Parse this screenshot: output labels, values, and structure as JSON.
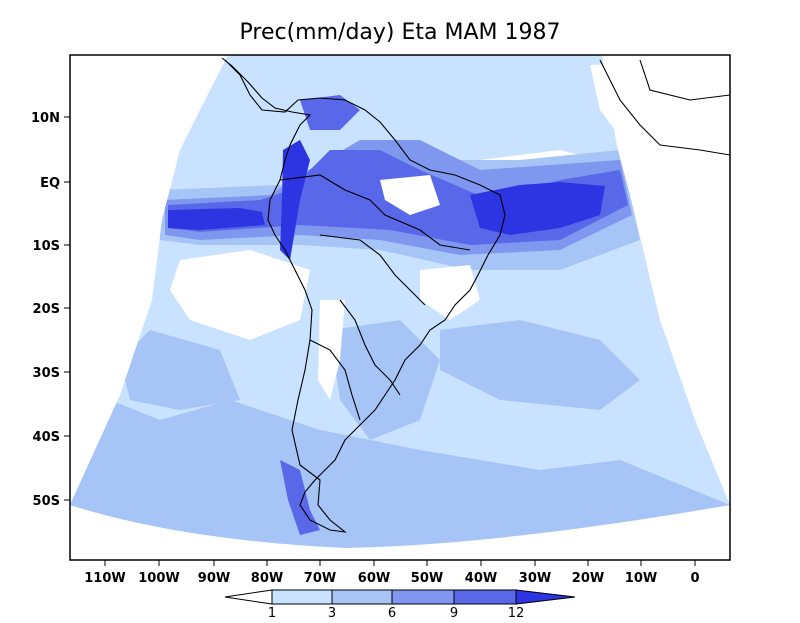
{
  "title": "Prec(mm/day) Eta MAM 1987",
  "y_ticks": [
    "10N",
    "EQ",
    "10S",
    "20S",
    "30S",
    "40S",
    "50S"
  ],
  "x_ticks": [
    "110W",
    "100W",
    "90W",
    "80W",
    "70W",
    "60W",
    "50W",
    "40W",
    "30W",
    "20W",
    "10W",
    "0"
  ],
  "colorbar": {
    "labels": [
      "1",
      "3",
      "6",
      "9",
      "12"
    ],
    "colors": [
      "#ffffff",
      "#c9e2ff",
      "#a6c4f6",
      "#7f97ee",
      "#5968e8",
      "#2d34e2"
    ]
  },
  "map_colors": {
    "ocean_base": "#c9e2ff",
    "land_dry": "#ffffff",
    "light": "#a6c4f6",
    "medium": "#7f97ee",
    "heavy": "#5968e8",
    "extreme": "#2d34e2",
    "coast": "#000000"
  }
}
